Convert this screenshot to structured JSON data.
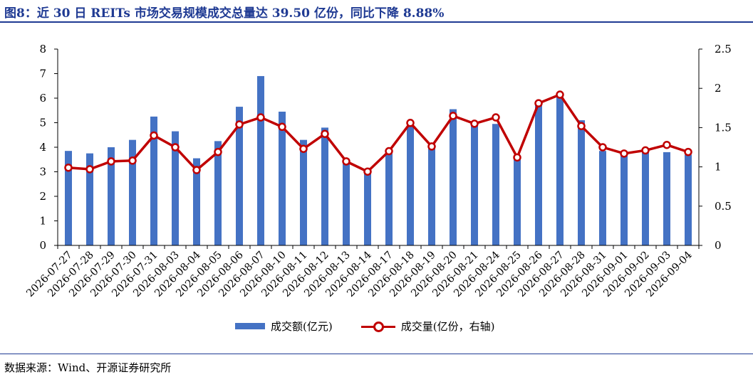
{
  "title": "图8：近 30 日 REITs 市场交易规模成交总量达 39.50 亿份，同比下降 8.88%",
  "source": "数据来源：Wind、开源证券研究所",
  "colors": {
    "bar": "#4472c4",
    "line": "#c00000",
    "title": "#1f3a93"
  },
  "legend": {
    "bar_label": "成交额(亿元)",
    "line_label": "成交量(亿份，右轴)"
  },
  "chart_data": {
    "type": "bar+line",
    "categories": [
      "2026-07-27",
      "2026-07-28",
      "2026-07-29",
      "2026-07-30",
      "2026-07-31",
      "2026-08-03",
      "2026-08-04",
      "2026-08-05",
      "2026-08-06",
      "2026-08-07",
      "2026-08-10",
      "2026-08-11",
      "2026-08-12",
      "2026-08-13",
      "2026-08-14",
      "2026-08-17",
      "2026-08-18",
      "2026-08-19",
      "2026-08-20",
      "2026-08-21",
      "2026-08-24",
      "2026-08-25",
      "2026-08-26",
      "2026-08-27",
      "2026-08-28",
      "2026-08-31",
      "2026-09-01",
      "2026-09-02",
      "2026-09-03",
      "2026-09-04"
    ],
    "series": [
      {
        "name": "成交额(亿元)",
        "type": "bar",
        "axis": "left",
        "values": [
          3.85,
          3.75,
          4.0,
          4.3,
          5.25,
          4.65,
          3.55,
          4.25,
          5.65,
          6.9,
          5.45,
          4.3,
          4.8,
          3.4,
          3.0,
          3.75,
          4.95,
          4.05,
          5.55,
          4.9,
          4.95,
          3.5,
          5.8,
          6.05,
          5.1,
          3.85,
          3.7,
          3.85,
          3.8,
          3.7
        ]
      },
      {
        "name": "成交量(亿份，右轴)",
        "type": "line",
        "axis": "right",
        "values": [
          0.99,
          0.97,
          1.07,
          1.08,
          1.4,
          1.25,
          0.96,
          1.19,
          1.54,
          1.63,
          1.51,
          1.23,
          1.42,
          1.07,
          0.94,
          1.2,
          1.56,
          1.26,
          1.65,
          1.55,
          1.63,
          1.12,
          1.81,
          1.92,
          1.52,
          1.25,
          1.17,
          1.21,
          1.28,
          1.19
        ]
      }
    ],
    "ylim_left": [
      0,
      8
    ],
    "yticks_left": [
      "0",
      "1",
      "2",
      "3",
      "4",
      "5",
      "6",
      "7",
      "8"
    ],
    "ylim_right": [
      0,
      2.5
    ],
    "yticks_right": [
      "0",
      "0.5",
      "1",
      "1.5",
      "2",
      "2.5"
    ],
    "legend_position": "bottom",
    "grid": false
  }
}
